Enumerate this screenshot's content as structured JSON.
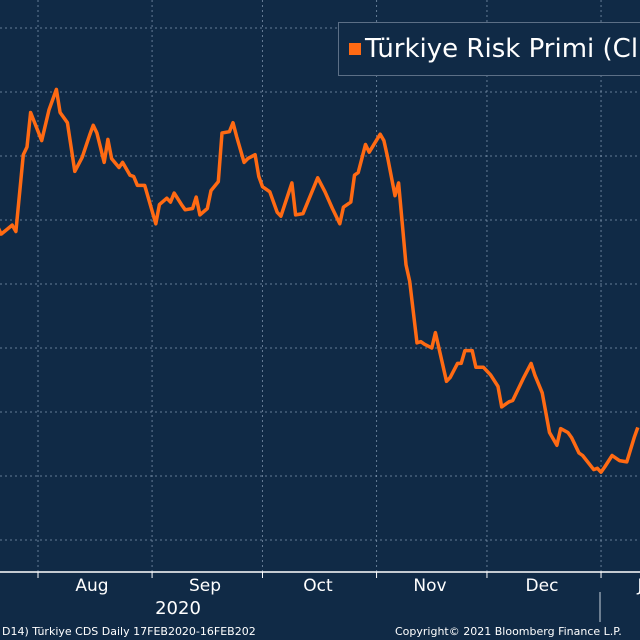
{
  "colors": {
    "background": "#102a46",
    "line": "#ff6a13",
    "grid": "#8aa0b8",
    "axis": "#ffffff"
  },
  "legend": {
    "label": "Türkiye Risk Primi (CDS)",
    "visible_label": "Türkiye Risk Primi (Cl"
  },
  "x_axis": {
    "months": [
      "Aug",
      "Sep",
      "Oct",
      "Nov",
      "Dec",
      "J"
    ],
    "year": "2020"
  },
  "footer": {
    "left": "D14) Türkiye CDS  Daily 17FEB2020-16FEB202",
    "right": "Copyright© 2021 Bloomberg Finance L.P."
  },
  "chart_data": {
    "type": "line",
    "title": "",
    "xlabel": "",
    "ylabel": "",
    "grid": true,
    "legend_position": "top-right",
    "month_starts": [
      "2020-08-01",
      "2020-09-01",
      "2020-10-01",
      "2020-11-01",
      "2020-12-01",
      "2021-01-01"
    ],
    "series": [
      {
        "name": "Türkiye Risk Primi (CDS)",
        "points": [
          [
            "2020-07-21",
            495
          ],
          [
            "2020-07-22",
            489
          ],
          [
            "2020-07-25",
            496
          ],
          [
            "2020-07-26",
            491
          ],
          [
            "2020-07-28",
            551
          ],
          [
            "2020-07-29",
            557
          ],
          [
            "2020-07-30",
            584
          ],
          [
            "2020-08-02",
            562
          ],
          [
            "2020-08-04",
            586
          ],
          [
            "2020-08-06",
            602
          ],
          [
            "2020-08-07",
            584
          ],
          [
            "2020-08-09",
            576
          ],
          [
            "2020-08-11",
            538
          ],
          [
            "2020-08-13",
            549
          ],
          [
            "2020-08-15",
            566
          ],
          [
            "2020-08-16",
            574
          ],
          [
            "2020-08-17",
            568
          ],
          [
            "2020-08-19",
            545
          ],
          [
            "2020-08-20",
            563
          ],
          [
            "2020-08-21",
            548
          ],
          [
            "2020-08-23",
            541
          ],
          [
            "2020-08-24",
            545
          ],
          [
            "2020-08-26",
            535
          ],
          [
            "2020-08-27",
            534
          ],
          [
            "2020-08-28",
            527
          ],
          [
            "2020-08-30",
            527
          ],
          [
            "2020-09-02",
            497
          ],
          [
            "2020-09-03",
            512
          ],
          [
            "2020-09-05",
            517
          ],
          [
            "2020-09-06",
            514
          ],
          [
            "2020-09-07",
            521
          ],
          [
            "2020-09-09",
            512
          ],
          [
            "2020-09-10",
            508
          ],
          [
            "2020-09-12",
            509
          ],
          [
            "2020-09-13",
            518
          ],
          [
            "2020-09-14",
            504
          ],
          [
            "2020-09-16",
            509
          ],
          [
            "2020-09-17",
            523
          ],
          [
            "2020-09-19",
            530
          ],
          [
            "2020-09-20",
            568
          ],
          [
            "2020-09-22",
            569
          ],
          [
            "2020-09-23",
            576
          ],
          [
            "2020-09-24",
            565
          ],
          [
            "2020-09-26",
            545
          ],
          [
            "2020-09-27",
            548
          ],
          [
            "2020-09-29",
            551
          ],
          [
            "2020-09-30",
            534
          ],
          [
            "2020-10-01",
            526
          ],
          [
            "2020-10-03",
            522
          ],
          [
            "2020-10-05",
            506
          ],
          [
            "2020-10-06",
            503
          ],
          [
            "2020-10-09",
            529
          ],
          [
            "2020-10-10",
            504
          ],
          [
            "2020-10-12",
            505
          ],
          [
            "2020-10-16",
            533
          ],
          [
            "2020-10-18",
            522
          ],
          [
            "2020-10-20",
            509
          ],
          [
            "2020-10-22",
            497
          ],
          [
            "2020-10-23",
            510
          ],
          [
            "2020-10-25",
            514
          ],
          [
            "2020-10-26",
            535
          ],
          [
            "2020-10-27",
            537
          ],
          [
            "2020-10-29",
            559
          ],
          [
            "2020-10-30",
            553
          ],
          [
            "2020-11-02",
            567
          ],
          [
            "2020-11-03",
            562
          ],
          [
            "2020-11-04",
            549
          ],
          [
            "2020-11-06",
            519
          ],
          [
            "2020-11-07",
            529
          ],
          [
            "2020-11-09",
            465
          ],
          [
            "2020-11-10",
            452
          ],
          [
            "2020-11-12",
            404
          ],
          [
            "2020-11-13",
            405
          ],
          [
            "2020-11-14",
            403
          ],
          [
            "2020-11-16",
            400
          ],
          [
            "2020-11-17",
            412
          ],
          [
            "2020-11-20",
            374
          ],
          [
            "2020-11-21",
            377
          ],
          [
            "2020-11-23",
            388
          ],
          [
            "2020-11-24",
            388
          ],
          [
            "2020-11-25",
            398
          ],
          [
            "2020-11-27",
            398
          ],
          [
            "2020-11-28",
            385
          ],
          [
            "2020-11-30",
            385
          ],
          [
            "2020-12-02",
            379
          ],
          [
            "2020-12-04",
            370
          ],
          [
            "2020-12-05",
            354
          ],
          [
            "2020-12-07",
            358
          ],
          [
            "2020-12-08",
            359
          ],
          [
            "2020-12-10",
            371
          ],
          [
            "2020-12-11",
            377
          ],
          [
            "2020-12-13",
            388
          ],
          [
            "2020-12-14",
            379
          ],
          [
            "2020-12-16",
            365
          ],
          [
            "2020-12-18",
            334
          ],
          [
            "2020-12-20",
            324
          ],
          [
            "2020-12-21",
            337
          ],
          [
            "2020-12-23",
            334
          ],
          [
            "2020-12-24",
            330
          ],
          [
            "2020-12-26",
            318
          ],
          [
            "2020-12-27",
            316
          ],
          [
            "2020-12-30",
            305
          ],
          [
            "2020-12-31",
            306
          ],
          [
            "2021-01-01",
            303
          ],
          [
            "2021-01-02",
            307
          ],
          [
            "2021-01-04",
            316
          ],
          [
            "2021-01-06",
            312
          ],
          [
            "2021-01-08",
            311
          ],
          [
            "2021-01-10",
            330
          ],
          [
            "2021-01-11",
            338
          ]
        ]
      }
    ],
    "y_gridlines": [
      250,
      300,
      350,
      400,
      450,
      500,
      550,
      600,
      650
    ]
  }
}
